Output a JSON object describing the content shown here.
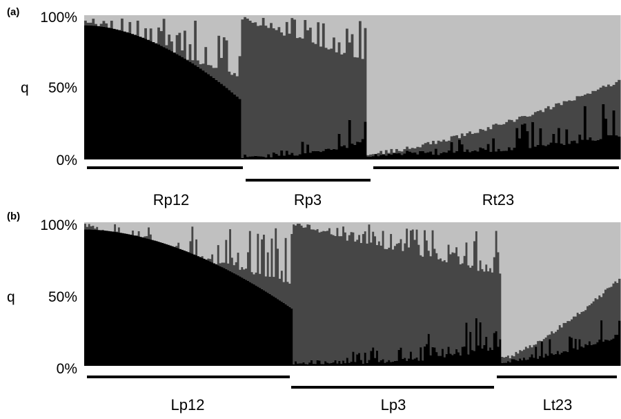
{
  "colors": {
    "cluster1": "#000000",
    "cluster2": "#464646",
    "cluster3": "#c0c0c0",
    "bracket": "#000000"
  },
  "chart_data": [
    {
      "type": "bar",
      "stacked": true,
      "panel_label": "(a)",
      "ylabel": "q",
      "yticks": [
        "100%",
        "50%",
        "0%"
      ],
      "ylim": [
        0,
        100
      ],
      "components": [
        "cluster1",
        "cluster2",
        "cluster3"
      ],
      "groups": [
        {
          "name": "Rp12",
          "n": 60,
          "c1_start": 93,
          "c1_end": 42,
          "c1_curve": 1.8,
          "top_start": 95,
          "top_end": 58,
          "spike": 0.55,
          "seed": 11
        },
        {
          "name": "Rp3",
          "n": 48,
          "c1_start": 1,
          "c1_end": 12,
          "c1_curve": 3.0,
          "c1_noise": 22,
          "top_start": 97,
          "top_end": 68,
          "spike": 0.45,
          "seed": 23
        },
        {
          "name": "Rt23",
          "n": 97,
          "c1_start": 2,
          "c1_end": 15,
          "c1_curve": 2.0,
          "c1_noise": 30,
          "top_start": 4,
          "top_end": 54,
          "top_curve": 1.4,
          "spike": 0.0,
          "seed": 37
        }
      ]
    },
    {
      "type": "bar",
      "stacked": true,
      "panel_label": "(b)",
      "ylabel": "q",
      "yticks": [
        "100%",
        "50%",
        "0%"
      ],
      "ylim": [
        0,
        100
      ],
      "components": [
        "cluster1",
        "cluster2",
        "cluster3"
      ],
      "groups": [
        {
          "name": "Lp12",
          "n": 105,
          "c1_start": 95,
          "c1_end": 40,
          "c1_curve": 1.8,
          "top_start": 97,
          "top_end": 58,
          "spike": 0.5,
          "seed": 51
        },
        {
          "name": "Lp3",
          "n": 105,
          "c1_start": 1,
          "c1_end": 12,
          "c1_curve": 3.0,
          "c1_noise": 30,
          "top_start": 97,
          "top_end": 64,
          "spike": 0.5,
          "seed": 63
        },
        {
          "name": "Lt23",
          "n": 60,
          "c1_start": 2,
          "c1_end": 20,
          "c1_curve": 1.6,
          "c1_noise": 35,
          "top_start": 5,
          "top_end": 60,
          "top_curve": 1.3,
          "spike": 0.0,
          "seed": 79
        }
      ]
    }
  ]
}
